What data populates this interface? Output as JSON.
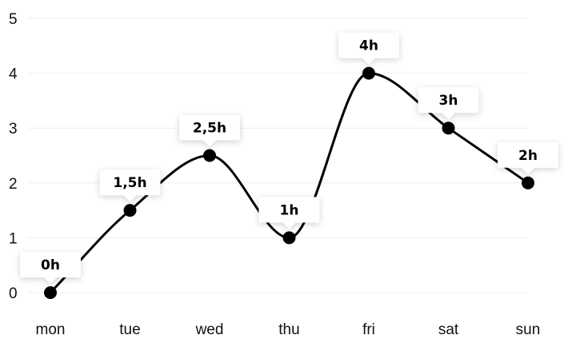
{
  "chart_data": {
    "type": "line",
    "categories": [
      "mon",
      "tue",
      "wed",
      "thu",
      "fri",
      "sat",
      "sun"
    ],
    "values": [
      0,
      1.5,
      2.5,
      1,
      4,
      3,
      2
    ],
    "data_labels": [
      "0h",
      "1,5h",
      "2,5h",
      "1h",
      "4h",
      "3h",
      "2h"
    ],
    "y_ticks": [
      "0",
      "1",
      "2",
      "3",
      "4",
      "5"
    ],
    "ylim": [
      0,
      5
    ],
    "title": "",
    "xlabel": "",
    "ylabel": "",
    "grid": true,
    "line_color": "#000000",
    "point_color": "#000000",
    "label_box_color": "#ffffff"
  }
}
